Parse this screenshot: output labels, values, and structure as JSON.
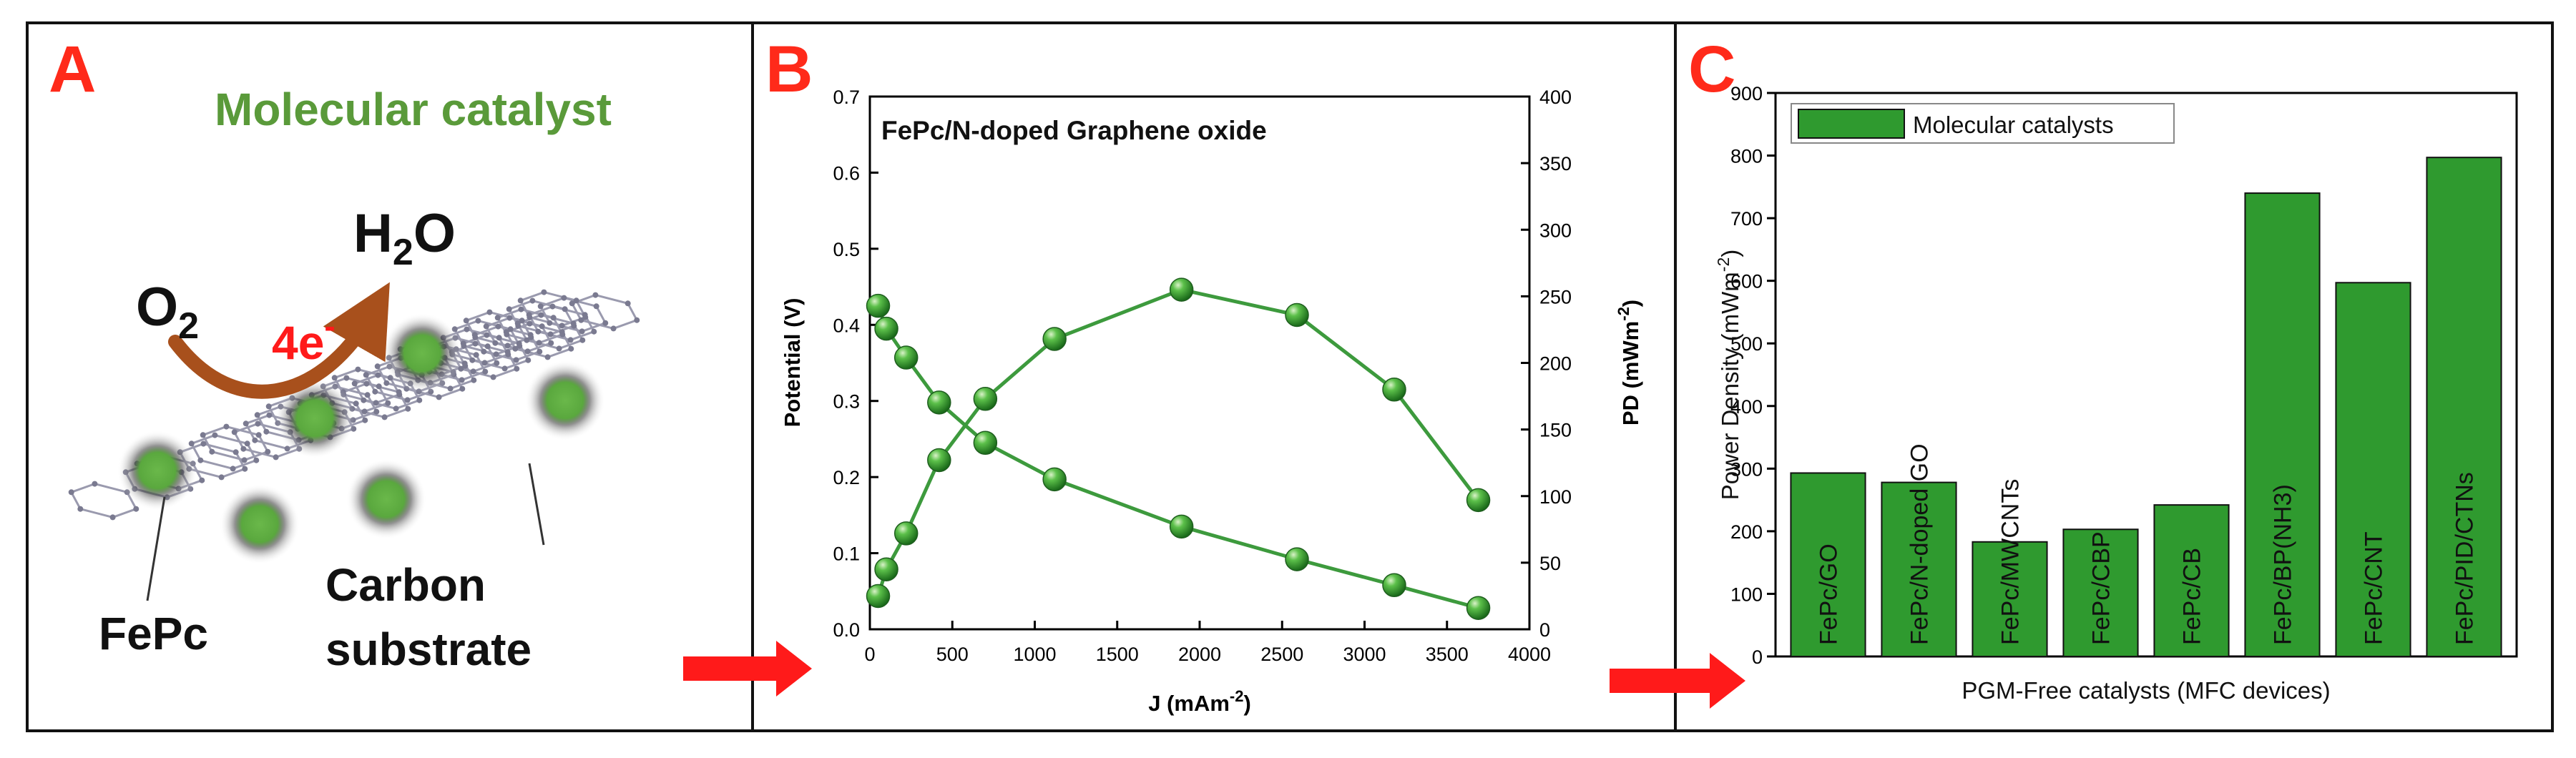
{
  "panel_a": {
    "label": "A",
    "title": "Molecular catalyst",
    "reactant": "O",
    "reactant_sub": "2",
    "electrons": "4e",
    "electrons_sup": "-",
    "product_h": "H",
    "product_sub": "2",
    "product_o": "O",
    "label_fepc": "FePc",
    "label_carbon_1": "Carbon",
    "label_carbon_2": "substrate"
  },
  "panel_b_label": "B",
  "panel_c_label": "C",
  "colors": {
    "panel_label": "#ff2a1a",
    "title_green": "#5a9a3a",
    "series_green": "#3d9a3d",
    "bar_green": "#2f9a2f",
    "arrow_red": "#ff1a1a",
    "electron_red": "#ff1a1a",
    "arrow_brown": "#a8501c"
  },
  "chart_data": [
    {
      "type": "line",
      "title": "FePc/N-doped Graphene oxide",
      "xlabel": "J (mAm",
      "xlabel_sup": "-2",
      "xlabel_end": ")",
      "ylabel": "Potential (V)",
      "y2label": "PD (mWm",
      "y2label_sup": "-2",
      "y2label_end": ")",
      "xlim": [
        0,
        4000
      ],
      "ylim": [
        0,
        0.7
      ],
      "y2lim": [
        0,
        400
      ],
      "xticks": [
        0,
        500,
        1000,
        1500,
        2000,
        2500,
        3000,
        3500,
        4000
      ],
      "yticks": [
        0.0,
        0.1,
        0.2,
        0.3,
        0.4,
        0.5,
        0.6,
        0.7
      ],
      "y2ticks": [
        0,
        50,
        100,
        150,
        200,
        250,
        300,
        350,
        400
      ],
      "series": [
        {
          "name": "Potential",
          "axis": "left",
          "x": [
            50,
            100,
            220,
            420,
            700,
            1120,
            1890,
            2590,
            3180,
            3690
          ],
          "y": [
            0.425,
            0.395,
            0.357,
            0.298,
            0.245,
            0.197,
            0.135,
            0.092,
            0.058,
            0.028
          ]
        },
        {
          "name": "Power density",
          "axis": "right",
          "x": [
            50,
            100,
            220,
            420,
            700,
            1120,
            1890,
            2590,
            3180,
            3690
          ],
          "y": [
            25,
            45,
            72,
            127,
            173,
            218,
            255,
            236,
            180,
            97
          ]
        }
      ]
    },
    {
      "type": "bar",
      "legend": "Molecular catalysts",
      "xlabel": "PGM-Free catalysts (MFC devices)",
      "ylabel": "Power Density (mWm",
      "ylabel_sup": "-2",
      "ylabel_end": ")",
      "ylim": [
        0,
        900
      ],
      "yticks": [
        0,
        100,
        200,
        300,
        400,
        500,
        600,
        700,
        800,
        900
      ],
      "categories": [
        "FePc/GO",
        "FePc/N-doped GO",
        "FePc/MWCNTs",
        "FePc/CBP",
        "FePc/CB",
        "FePc/BP(NH3)",
        "FePc/CNT",
        "FePc/PID/CTNs"
      ],
      "values": [
        293,
        278,
        183,
        203,
        242,
        740,
        597,
        797
      ]
    }
  ]
}
